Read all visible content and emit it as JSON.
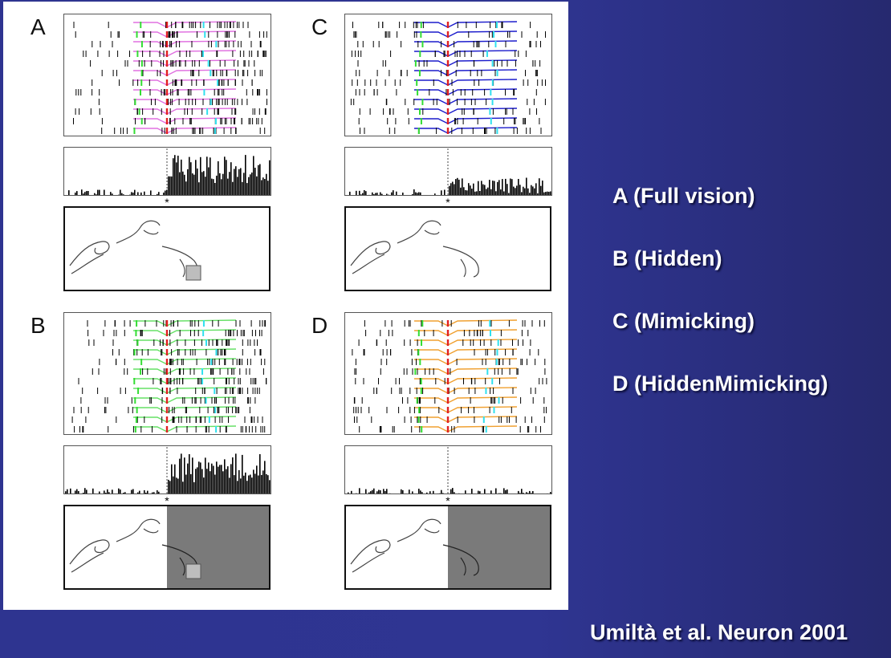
{
  "panels": [
    {
      "label": "A",
      "curve_color": "#e070e0",
      "hidden": false,
      "object": true
    },
    {
      "label": "B",
      "curve_color": "#66e066",
      "hidden": true,
      "object": true
    },
    {
      "label": "C",
      "curve_color": "#1c1ccc",
      "hidden": false,
      "object": false
    },
    {
      "label": "D",
      "curve_color": "#f0a030",
      "hidden": true,
      "object": false
    }
  ],
  "event_colors": {
    "start": "#33dd33",
    "center": "#e02020",
    "end": "#30e0ee"
  },
  "legend": [
    "A (Full vision)",
    "B (Hidden)",
    "C (Mimicking)",
    "D (HiddenMimicking)"
  ],
  "citation": "Umiltà et al. Neuron 2001",
  "marker": "*"
}
